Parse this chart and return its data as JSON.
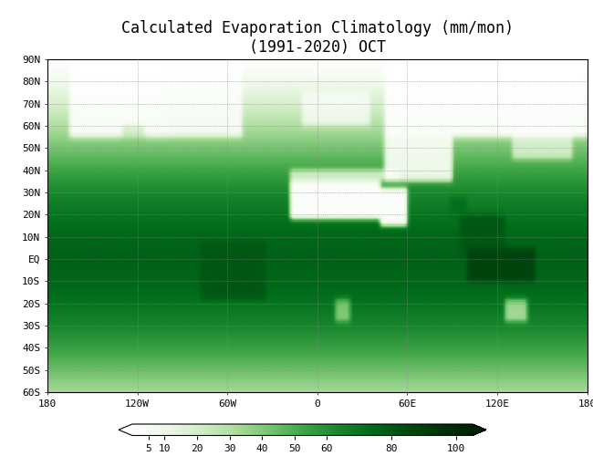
{
  "title_line1": "Calculated Evaporation Climatology (mm/mon)",
  "title_line2": "(1991-2020) OCT",
  "title_fontsize": 12,
  "colorbar_ticks": [
    5,
    10,
    20,
    30,
    40,
    50,
    60,
    80,
    100
  ],
  "colorbar_tick_labels": [
    "5",
    "10",
    "20",
    "30",
    "40",
    "50",
    "60",
    "80",
    "100"
  ],
  "vmin": 0,
  "vmax": 105,
  "xlim": [
    -180,
    180
  ],
  "ylim": [
    -60,
    90
  ],
  "xticks": [
    -180,
    -120,
    -60,
    0,
    60,
    120,
    180
  ],
  "xtick_labels": [
    "180",
    "120W",
    "60W",
    "0",
    "60E",
    "120E",
    "180"
  ],
  "yticks": [
    -60,
    -50,
    -40,
    -30,
    -20,
    -10,
    0,
    10,
    20,
    30,
    40,
    50,
    60,
    70,
    80,
    90
  ],
  "ytick_labels": [
    "60S",
    "50S",
    "40S",
    "30S",
    "20S",
    "10S",
    "EQ",
    "10N",
    "20N",
    "30N",
    "40N",
    "50N",
    "60N",
    "70N",
    "80N",
    "90N"
  ]
}
